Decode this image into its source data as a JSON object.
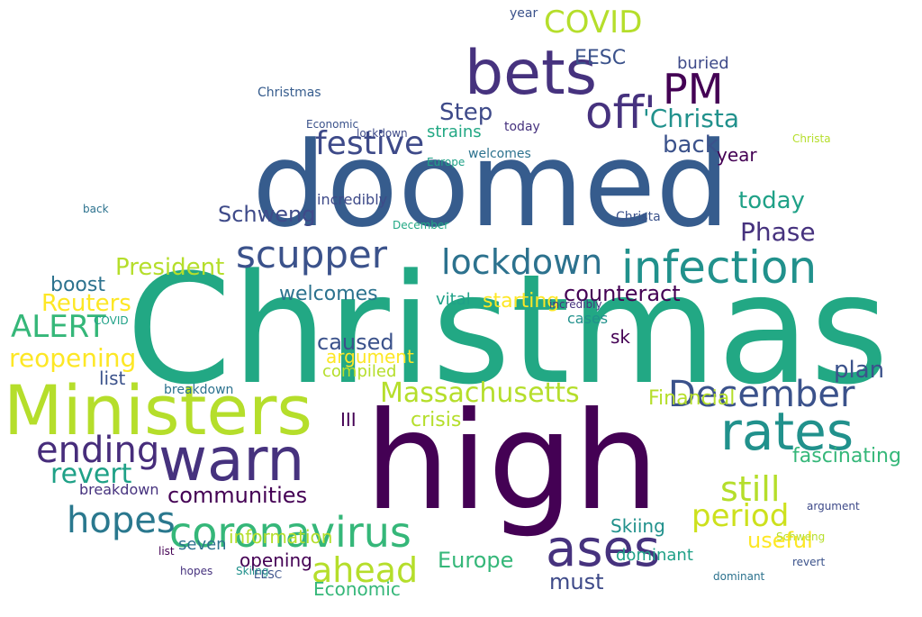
{
  "image": {
    "type": "word-cloud",
    "palette": [
      "#440154",
      "#46327e",
      "#365c8d",
      "#277f8e",
      "#1fa187",
      "#4ac16d",
      "#a0da39",
      "#fde725"
    ],
    "words": [
      {
        "text": "Christmas",
        "color": "#22a884"
      },
      {
        "text": "doomed",
        "color": "#365c8d"
      },
      {
        "text": "high",
        "color": "#440154"
      },
      {
        "text": "Ministers",
        "color": "#b5de2b"
      },
      {
        "text": "bets",
        "color": "#46327e"
      },
      {
        "text": "warn",
        "color": "#46327e"
      },
      {
        "text": "rates",
        "color": "#21918c"
      },
      {
        "text": "infection",
        "color": "#21918c"
      },
      {
        "text": "December",
        "color": "#3b528b"
      },
      {
        "text": "coronavirus",
        "color": "#35b779"
      },
      {
        "text": "ases",
        "color": "#46327e"
      },
      {
        "text": "hopes",
        "color": "#2a788e"
      },
      {
        "text": "ending",
        "color": "#472d7b"
      },
      {
        "text": "lockdown",
        "color": "#2c728e"
      },
      {
        "text": "scupper",
        "color": "#3b528b"
      },
      {
        "text": "PM",
        "color": "#440154"
      },
      {
        "text": "off'",
        "color": "#46327e"
      },
      {
        "text": "'Christa",
        "color": "#21918c"
      },
      {
        "text": "festive",
        "color": "#3e4a89"
      },
      {
        "text": "Massachusetts",
        "color": "#b5de2b"
      },
      {
        "text": "ahead",
        "color": "#b5de2b"
      },
      {
        "text": "period",
        "color": "#cde11d"
      },
      {
        "text": "still",
        "color": "#b5de2b"
      },
      {
        "text": "communities",
        "color": "#440154"
      },
      {
        "text": "COVID",
        "color": "#b5de2b"
      },
      {
        "text": "Step",
        "color": "#3e4a89"
      },
      {
        "text": "Reuters",
        "color": "#fde725"
      },
      {
        "text": "Phase",
        "color": "#46327e"
      },
      {
        "text": "today",
        "color": "#1fa187"
      },
      {
        "text": "President",
        "color": "#b5de2b"
      },
      {
        "text": "boost",
        "color": "#2c728e"
      },
      {
        "text": "ALERT",
        "color": "#35b779"
      },
      {
        "text": "reopening",
        "color": "#fde725"
      },
      {
        "text": "revert",
        "color": "#1fa187"
      },
      {
        "text": "plan",
        "color": "#3b528b"
      },
      {
        "text": "useful",
        "color": "#fde725"
      },
      {
        "text": "back",
        "color": "#3b528b"
      },
      {
        "text": "year",
        "color": "#440154"
      },
      {
        "text": "caused",
        "color": "#3b528b"
      },
      {
        "text": "argument",
        "color": "#fde725"
      },
      {
        "text": "counteract",
        "color": "#440154"
      },
      {
        "text": "starting",
        "color": "#fde725"
      },
      {
        "text": "crisis",
        "color": "#b5de2b"
      },
      {
        "text": "Financial",
        "color": "#b5de2b"
      },
      {
        "text": "information",
        "color": "#b5de2b"
      },
      {
        "text": "fascinating",
        "color": "#35b779"
      },
      {
        "text": "must",
        "color": "#3e4a89"
      },
      {
        "text": "Europe",
        "color": "#35b779"
      },
      {
        "text": "Economic",
        "color": "#35b779"
      },
      {
        "text": "Skiing",
        "color": "#21918c"
      },
      {
        "text": "breakdown",
        "color": "#46327e"
      },
      {
        "text": "seven",
        "color": "#2c728e"
      },
      {
        "text": "EESC",
        "color": "#3b528b"
      },
      {
        "text": "dominant",
        "color": "#1fa187"
      },
      {
        "text": "opening",
        "color": "#440154"
      },
      {
        "text": "welcomes",
        "color": "#2c728e"
      },
      {
        "text": "buried",
        "color": "#3e4a89"
      },
      {
        "text": "list",
        "color": "#3b528b"
      },
      {
        "text": "compiled",
        "color": "#b5de2b"
      },
      {
        "text": "Schweng",
        "color": "#3e4a89"
      },
      {
        "text": "strains",
        "color": "#22a884"
      },
      {
        "text": "vital",
        "color": "#1fa187"
      },
      {
        "text": "incredibly",
        "color": "#3e4a89"
      },
      {
        "text": "III",
        "color": "#440154"
      },
      {
        "text": "sk",
        "color": "#440154"
      },
      {
        "text": "cases",
        "color": "#21918c"
      },
      {
        "text": "Christa",
        "color": "#3b528b"
      }
    ]
  }
}
